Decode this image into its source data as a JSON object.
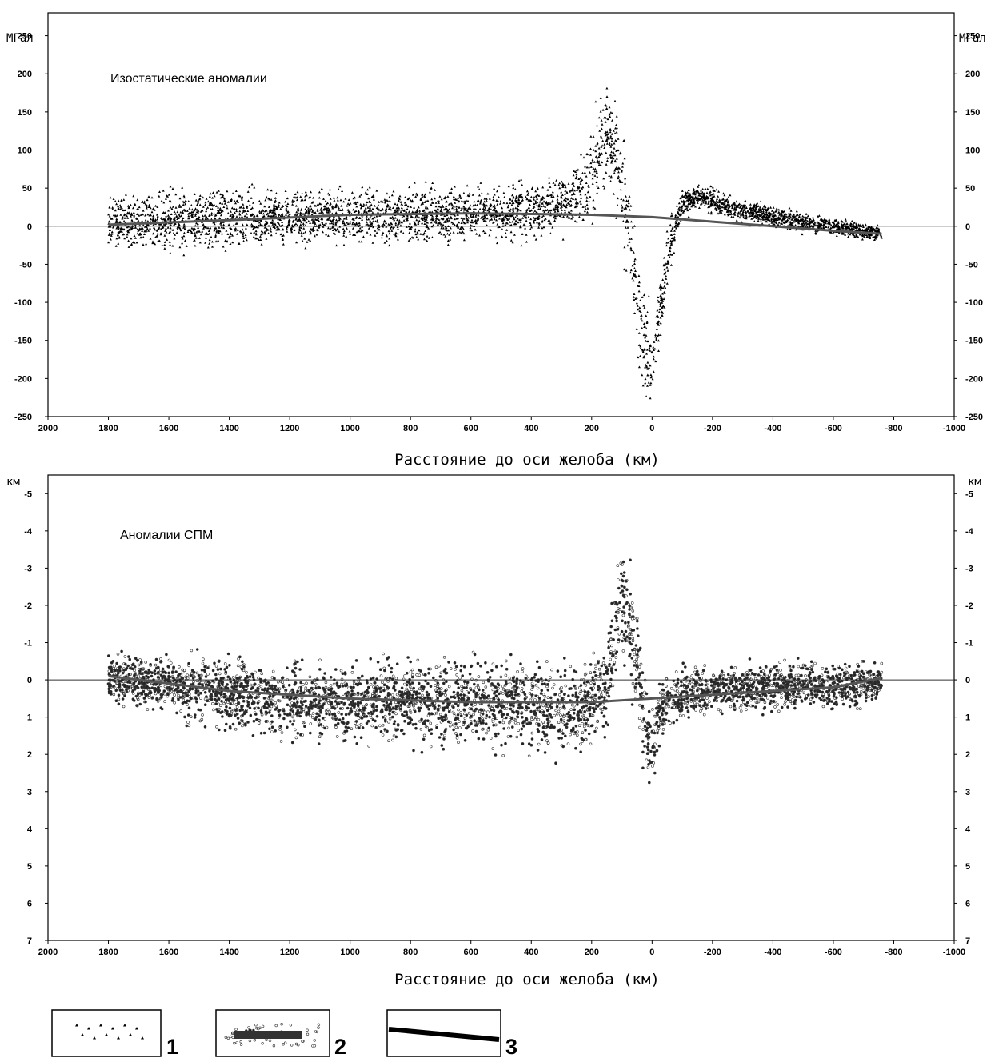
{
  "xlabel": "Расстояние до оси желоба (км)",
  "legend": [
    "1",
    "2",
    "3"
  ],
  "chart_data": [
    {
      "type": "scatter",
      "title": "Изостатические аномалии",
      "ylabel_left": "МГал",
      "ylabel_right": "МГал",
      "xlabel": "Расстояние до оси желоба (км)",
      "xlim": [
        2000,
        -1000
      ],
      "ylim": [
        -250,
        280
      ],
      "x_reversed": true,
      "xticks": [
        "2000",
        "1800",
        "1600",
        "1400",
        "1200",
        "1000",
        "800",
        "600",
        "400",
        "200",
        "0",
        "-200",
        "-400",
        "-600",
        "-800",
        "-1000"
      ],
      "yticks": [
        "250",
        "200",
        "150",
        "100",
        "50",
        "0",
        "-50",
        "-100",
        "-150",
        "-200",
        "-250"
      ],
      "marker": "triangle",
      "series": [
        {
          "name": "1",
          "profile": [
            {
              "x": 1800,
              "y": 5,
              "spread": 28
            },
            {
              "x": 1600,
              "y": 8,
              "spread": 30
            },
            {
              "x": 1400,
              "y": 10,
              "spread": 30
            },
            {
              "x": 1200,
              "y": 13,
              "spread": 30
            },
            {
              "x": 1000,
              "y": 15,
              "spread": 28
            },
            {
              "x": 800,
              "y": 15,
              "spread": 28
            },
            {
              "x": 600,
              "y": 15,
              "spread": 28
            },
            {
              "x": 400,
              "y": 20,
              "spread": 28
            },
            {
              "x": 300,
              "y": 30,
              "spread": 30
            },
            {
              "x": 220,
              "y": 50,
              "spread": 40
            },
            {
              "x": 150,
              "y": 130,
              "spread": 60
            },
            {
              "x": 100,
              "y": 60,
              "spread": 60
            },
            {
              "x": 60,
              "y": -60,
              "spread": 60
            },
            {
              "x": 30,
              "y": -150,
              "spread": 50
            },
            {
              "x": 0,
              "y": -180,
              "spread": 50
            },
            {
              "x": -30,
              "y": -100,
              "spread": 40
            },
            {
              "x": -60,
              "y": -20,
              "spread": 25
            },
            {
              "x": -100,
              "y": 30,
              "spread": 15
            },
            {
              "x": -150,
              "y": 40,
              "spread": 12
            },
            {
              "x": -300,
              "y": 20,
              "spread": 12
            },
            {
              "x": -500,
              "y": 5,
              "spread": 10
            },
            {
              "x": -760,
              "y": -10,
              "spread": 8
            }
          ]
        },
        {
          "name": "3",
          "x": [
            1800,
            1400,
            1000,
            600,
            200,
            0,
            -200,
            -400,
            -600,
            -760
          ],
          "y": [
            2,
            8,
            15,
            17,
            15,
            12,
            6,
            0,
            -6,
            -10
          ]
        }
      ]
    },
    {
      "type": "scatter",
      "title": "Аномалии СПМ",
      "ylabel_left": "км",
      "ylabel_right": "км",
      "xlabel": "Расстояние до оси желоба (км)",
      "xlim": [
        2000,
        -1000
      ],
      "ylim": [
        -5.5,
        7
      ],
      "x_reversed": true,
      "y_reversed": true,
      "xticks": [
        "2000",
        "1800",
        "1600",
        "1400",
        "1200",
        "1000",
        "800",
        "600",
        "400",
        "200",
        "0",
        "-200",
        "-400",
        "-600",
        "-800",
        "-1000"
      ],
      "yticks": [
        "-5",
        "-4",
        "-3",
        "-2",
        "-1",
        "0",
        "1",
        "2",
        "3",
        "4",
        "5",
        "6",
        "7"
      ],
      "marker": "circle",
      "series": [
        {
          "name": "2",
          "profile": [
            {
              "x": 1800,
              "y": 0.0,
              "spread": 0.5
            },
            {
              "x": 1600,
              "y": 0.1,
              "spread": 0.6
            },
            {
              "x": 1400,
              "y": 0.4,
              "spread": 0.8
            },
            {
              "x": 1200,
              "y": 0.6,
              "spread": 0.8
            },
            {
              "x": 1000,
              "y": 0.6,
              "spread": 0.8
            },
            {
              "x": 800,
              "y": 0.6,
              "spread": 0.9
            },
            {
              "x": 600,
              "y": 0.6,
              "spread": 0.9
            },
            {
              "x": 400,
              "y": 0.7,
              "spread": 1.0
            },
            {
              "x": 250,
              "y": 0.8,
              "spread": 0.9
            },
            {
              "x": 150,
              "y": 0.2,
              "spread": 0.9
            },
            {
              "x": 100,
              "y": -2.5,
              "spread": 1.2
            },
            {
              "x": 60,
              "y": -1.0,
              "spread": 1.3
            },
            {
              "x": 20,
              "y": 1.5,
              "spread": 1.0
            },
            {
              "x": 0,
              "y": 1.8,
              "spread": 0.9
            },
            {
              "x": -40,
              "y": 0.5,
              "spread": 0.6
            },
            {
              "x": -200,
              "y": 0.3,
              "spread": 0.5
            },
            {
              "x": -400,
              "y": 0.2,
              "spread": 0.5
            },
            {
              "x": -600,
              "y": 0.2,
              "spread": 0.5
            },
            {
              "x": -760,
              "y": 0.1,
              "spread": 0.4
            }
          ]
        },
        {
          "name": "3",
          "x": [
            1800,
            1400,
            1000,
            600,
            200,
            0,
            -200,
            -400,
            -600,
            -760
          ],
          "y": [
            -0.1,
            0.3,
            0.5,
            0.6,
            0.6,
            0.5,
            0.4,
            0.3,
            0.2,
            -0.05
          ]
        }
      ]
    }
  ]
}
